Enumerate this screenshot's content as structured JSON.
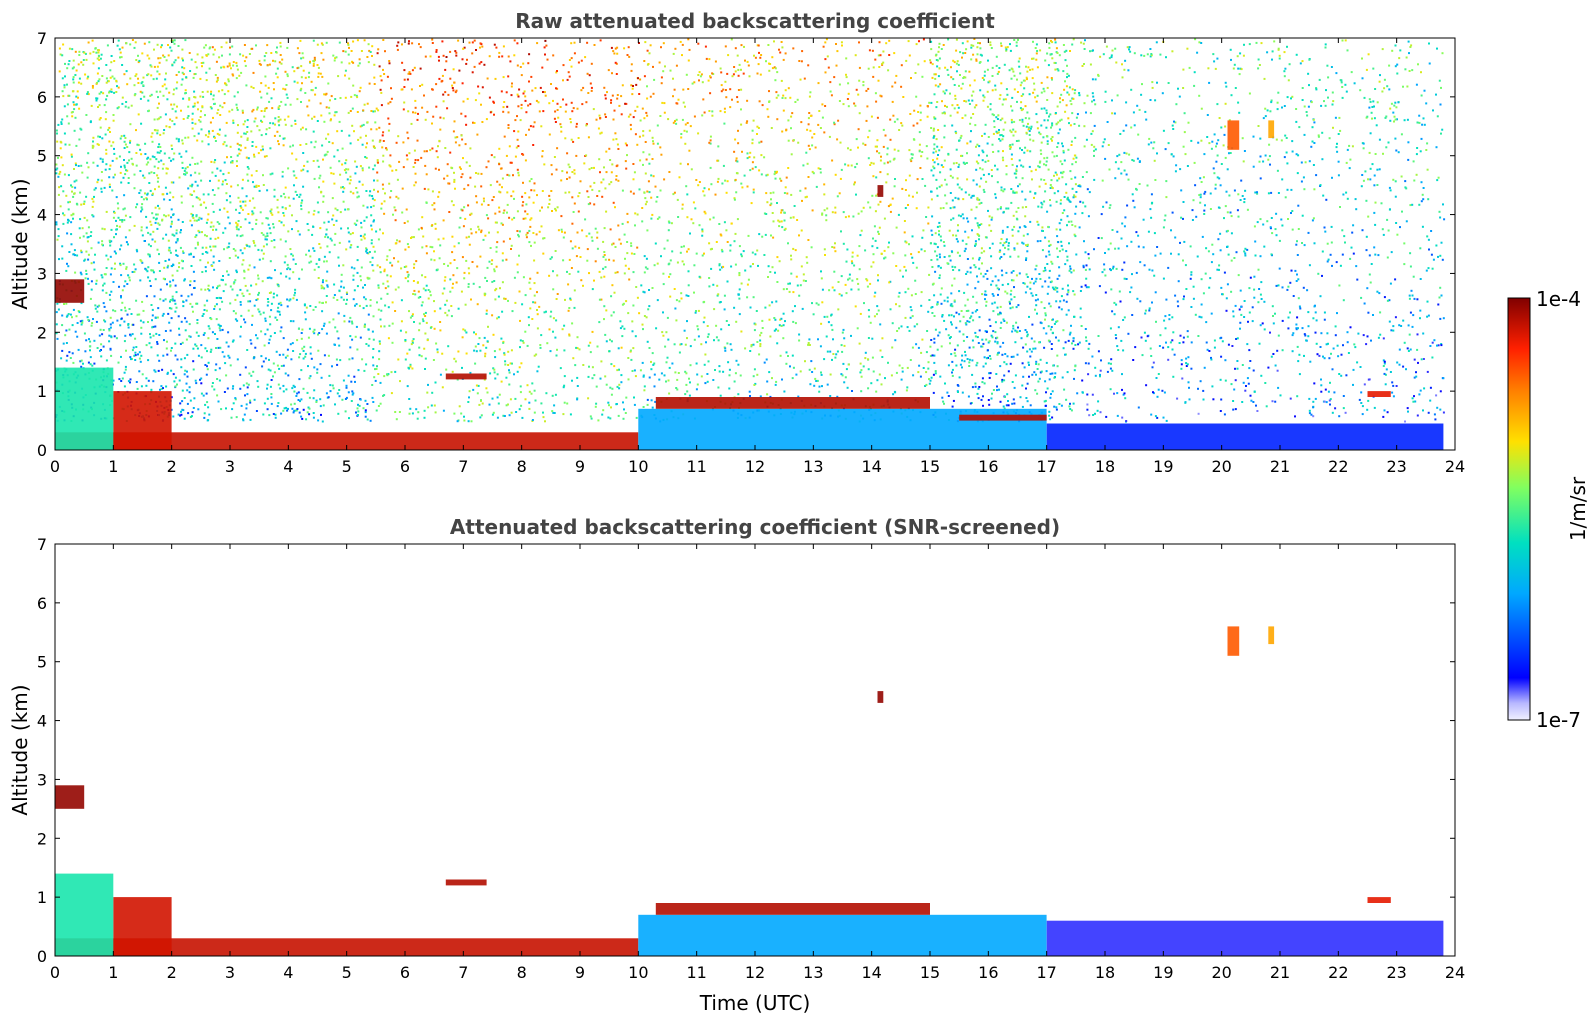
{
  "chart_data": [
    {
      "type": "heatmap",
      "title": "Raw attenuated backscattering coefficient",
      "xlabel": "",
      "ylabel": "Altitude (km)",
      "xlim": [
        0,
        24
      ],
      "ylim": [
        0,
        7
      ],
      "xticks": [
        "0",
        "1",
        "2",
        "3",
        "4",
        "5",
        "6",
        "7",
        "8",
        "9",
        "10",
        "11",
        "12",
        "13",
        "14",
        "15",
        "16",
        "17",
        "18",
        "19",
        "20",
        "21",
        "22",
        "23",
        "24"
      ],
      "yticks": [
        "0",
        "1",
        "2",
        "3",
        "4",
        "5",
        "6",
        "7"
      ],
      "data_end_x": 23.8,
      "noise_level_segments": [
        {
          "x": [
            0,
            2.5
          ],
          "value": 0.55
        },
        {
          "x": [
            2.5,
            5.5
          ],
          "value": 0.6
        },
        {
          "x": [
            5.5,
            10
          ],
          "value": 0.82
        },
        {
          "x": [
            10,
            15
          ],
          "value": 0.7
        },
        {
          "x": [
            15,
            17.5
          ],
          "value": 0.55
        },
        {
          "x": [
            17.5,
            23.8
          ],
          "value": 0.45
        }
      ],
      "features": [
        {
          "kind": "boundary_layer_aerosol",
          "x": [
            0,
            10
          ],
          "y": [
            0,
            0.3
          ],
          "value": 0.93
        },
        {
          "kind": "boundary_layer_aerosol",
          "x": [
            10,
            17
          ],
          "y": [
            0,
            0.7
          ],
          "value": 0.25
        },
        {
          "kind": "boundary_layer_aerosol",
          "x": [
            17,
            23.8
          ],
          "y": [
            0,
            0.45
          ],
          "value": 0.15
        },
        {
          "kind": "aerosol_plume",
          "x": [
            1.0,
            2.0
          ],
          "y": [
            0,
            1.0
          ],
          "value": 0.92
        },
        {
          "kind": "aerosol_plume",
          "x": [
            0,
            1.0
          ],
          "y": [
            0,
            1.4
          ],
          "value": 0.4
        },
        {
          "kind": "cloud_layer",
          "x": [
            0,
            0.5
          ],
          "y": [
            2.5,
            2.9
          ],
          "value": 0.98
        },
        {
          "kind": "cloud_layer",
          "x": [
            6.7,
            7.4
          ],
          "y": [
            1.2,
            1.3
          ],
          "value": 0.95
        },
        {
          "kind": "cloud_layer",
          "x": [
            10.3,
            15
          ],
          "y": [
            0.7,
            0.9
          ],
          "value": 0.95
        },
        {
          "kind": "cloud_layer",
          "x": [
            15.5,
            17
          ],
          "y": [
            0.5,
            0.6
          ],
          "value": 0.95
        },
        {
          "kind": "cloud_layer",
          "x": [
            22.5,
            22.9
          ],
          "y": [
            0.9,
            1.0
          ],
          "value": 0.9
        },
        {
          "kind": "cirrus",
          "x": [
            20.1,
            20.3
          ],
          "y": [
            5.1,
            5.6
          ],
          "value": 0.8
        },
        {
          "kind": "cirrus",
          "x": [
            20.8,
            20.9
          ],
          "y": [
            5.3,
            5.6
          ],
          "value": 0.7
        },
        {
          "kind": "cirrus",
          "x": [
            14.1,
            14.2
          ],
          "y": [
            4.3,
            4.5
          ],
          "value": 0.98
        }
      ]
    },
    {
      "type": "heatmap",
      "title": "Attenuated backscattering coefficient (SNR-screened)",
      "xlabel": "Time (UTC)",
      "ylabel": "Altitude (km)",
      "xlim": [
        0,
        24
      ],
      "ylim": [
        0,
        7
      ],
      "xticks": [
        "0",
        "1",
        "2",
        "3",
        "4",
        "5",
        "6",
        "7",
        "8",
        "9",
        "10",
        "11",
        "12",
        "13",
        "14",
        "15",
        "16",
        "17",
        "18",
        "19",
        "20",
        "21",
        "22",
        "23",
        "24"
      ],
      "yticks": [
        "0",
        "1",
        "2",
        "3",
        "4",
        "5",
        "6",
        "7"
      ],
      "data_end_x": 23.8,
      "features": [
        {
          "kind": "boundary_layer_aerosol",
          "x": [
            0,
            10
          ],
          "y": [
            0,
            0.3
          ],
          "value": 0.93
        },
        {
          "kind": "boundary_layer_aerosol",
          "x": [
            10,
            17
          ],
          "y": [
            0,
            0.7
          ],
          "value": 0.25
        },
        {
          "kind": "boundary_layer_aerosol",
          "x": [
            17,
            23.8
          ],
          "y": [
            0,
            0.6
          ],
          "value": 0.1
        },
        {
          "kind": "aerosol_plume",
          "x": [
            1.0,
            2.0
          ],
          "y": [
            0,
            1.0
          ],
          "value": 0.92
        },
        {
          "kind": "aerosol_plume",
          "x": [
            0,
            1.0
          ],
          "y": [
            0,
            1.4
          ],
          "value": 0.4
        },
        {
          "kind": "cloud_layer",
          "x": [
            0,
            0.5
          ],
          "y": [
            2.5,
            2.9
          ],
          "value": 0.98
        },
        {
          "kind": "cloud_layer",
          "x": [
            6.7,
            7.4
          ],
          "y": [
            1.2,
            1.3
          ],
          "value": 0.95
        },
        {
          "kind": "cloud_layer",
          "x": [
            10.3,
            15
          ],
          "y": [
            0.7,
            0.9
          ],
          "value": 0.95
        },
        {
          "kind": "cloud_layer",
          "x": [
            22.5,
            22.9
          ],
          "y": [
            0.9,
            1.0
          ],
          "value": 0.9
        },
        {
          "kind": "cirrus",
          "x": [
            20.1,
            20.3
          ],
          "y": [
            5.1,
            5.6
          ],
          "value": 0.8
        },
        {
          "kind": "cirrus",
          "x": [
            20.8,
            20.9
          ],
          "y": [
            5.3,
            5.6
          ],
          "value": 0.7
        },
        {
          "kind": "cirrus",
          "x": [
            14.1,
            14.2
          ],
          "y": [
            4.3,
            4.5
          ],
          "value": 0.98
        }
      ]
    }
  ],
  "colorbar": {
    "max_label": "1e-4",
    "min_label": "1e-7",
    "unit_label": "1/m/sr",
    "scale": "log",
    "range": [
      1e-07,
      0.0001
    ],
    "colormap": [
      "#f1f1ff",
      "#0000ff",
      "#00a8ff",
      "#00e0c0",
      "#80ff60",
      "#ffe000",
      "#ff8000",
      "#ff2000",
      "#800000"
    ]
  }
}
